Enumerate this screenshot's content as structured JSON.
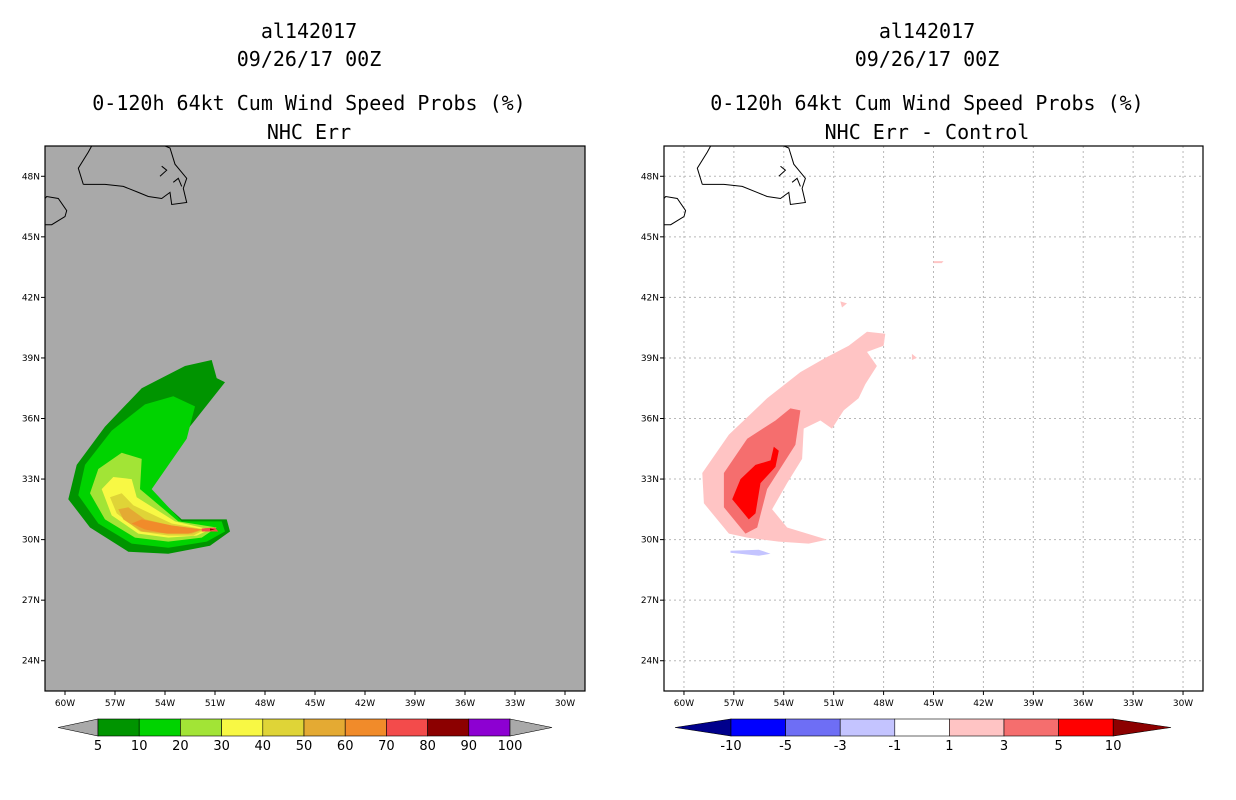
{
  "chart_data": [
    {
      "type": "heatmap",
      "storm_id": "al142017",
      "date": "09/26/17 00Z",
      "title": "0-120h 64kt Cum Wind Speed Probs (%)",
      "subtitle": "NHC Err",
      "background": "#a9a9a9",
      "x_tick_labels": [
        "60W",
        "57W",
        "54W",
        "51W",
        "48W",
        "45W",
        "42W",
        "39W",
        "36W",
        "33W",
        "30W"
      ],
      "y_tick_labels": [
        "24N",
        "27N",
        "30N",
        "33N",
        "36N",
        "39N",
        "42N",
        "45N",
        "48N"
      ],
      "colorbar": {
        "labels": [
          "5",
          "10",
          "20",
          "30",
          "40",
          "50",
          "60",
          "70",
          "80",
          "90",
          "100"
        ],
        "colors": [
          "#009400",
          "#00d300",
          "#a2e436",
          "#f8f844",
          "#dfd437",
          "#e4aa33",
          "#f18b2a",
          "#f34b4b",
          "#8c0000",
          "#8d00d2"
        ],
        "under_color": "#a9a9a9",
        "over_color": "#a9a9a9"
      },
      "contours": [
        {
          "level": "5-10",
          "color": "#009400",
          "points": [
            [
              -56.2,
              29.4
            ],
            [
              -58.5,
              30.6
            ],
            [
              -59.8,
              32.0
            ],
            [
              -59.3,
              33.7
            ],
            [
              -57.6,
              35.6
            ],
            [
              -55.4,
              37.5
            ],
            [
              -52.8,
              38.6
            ],
            [
              -51.2,
              38.9
            ],
            [
              -50.9,
              38.0
            ],
            [
              -50.4,
              37.8
            ],
            [
              -52.6,
              35.5
            ],
            [
              -55.0,
              32.5
            ],
            [
              -53.0,
              31.0
            ],
            [
              -50.3,
              31.0
            ],
            [
              -50.1,
              30.4
            ],
            [
              -51.3,
              29.7
            ],
            [
              -53.8,
              29.3
            ]
          ]
        },
        {
          "level": "10-20",
          "color": "#00d300",
          "points": [
            [
              -56.0,
              29.8
            ],
            [
              -58.0,
              30.8
            ],
            [
              -59.2,
              32.2
            ],
            [
              -58.8,
              33.7
            ],
            [
              -57.2,
              35.4
            ],
            [
              -55.2,
              36.7
            ],
            [
              -53.5,
              37.1
            ],
            [
              -52.2,
              36.6
            ],
            [
              -52.7,
              35.0
            ],
            [
              -54.8,
              32.5
            ],
            [
              -53.0,
              30.9
            ],
            [
              -50.6,
              30.9
            ],
            [
              -50.4,
              30.4
            ],
            [
              -51.5,
              29.9
            ],
            [
              -53.8,
              29.6
            ]
          ]
        },
        {
          "level": "20-30",
          "color": "#a2e436",
          "points": [
            [
              -55.8,
              30.1
            ],
            [
              -57.6,
              31.0
            ],
            [
              -58.5,
              32.3
            ],
            [
              -58.0,
              33.5
            ],
            [
              -56.6,
              34.3
            ],
            [
              -55.4,
              34.0
            ],
            [
              -55.5,
              32.5
            ],
            [
              -53.2,
              30.9
            ],
            [
              -50.9,
              30.6
            ],
            [
              -51.8,
              30.1
            ],
            [
              -53.8,
              29.9
            ]
          ]
        },
        {
          "level": "30-40",
          "color": "#f8f844",
          "points": [
            [
              -55.6,
              30.3
            ],
            [
              -57.2,
              31.2
            ],
            [
              -57.8,
              32.5
            ],
            [
              -57.1,
              33.1
            ],
            [
              -56.0,
              33.0
            ],
            [
              -55.7,
              32.1
            ],
            [
              -53.4,
              30.9
            ],
            [
              -51.3,
              30.5
            ],
            [
              -52.1,
              30.2
            ],
            [
              -53.8,
              30.1
            ]
          ]
        },
        {
          "level": "40-50",
          "color": "#dfd437",
          "points": [
            [
              -55.5,
              30.4
            ],
            [
              -56.9,
              31.3
            ],
            [
              -57.3,
              32.1
            ],
            [
              -56.6,
              32.3
            ],
            [
              -55.9,
              31.7
            ],
            [
              -53.6,
              30.8
            ],
            [
              -51.6,
              30.5
            ],
            [
              -52.3,
              30.2
            ],
            [
              -53.8,
              30.2
            ]
          ]
        },
        {
          "level": "50-60",
          "color": "#e4aa33",
          "points": [
            [
              -55.4,
              30.4
            ],
            [
              -56.5,
              31.0
            ],
            [
              -56.8,
              31.5
            ],
            [
              -56.2,
              31.6
            ],
            [
              -55.2,
              31.0
            ],
            [
              -53.6,
              30.7
            ],
            [
              -51.7,
              30.5
            ],
            [
              -52.4,
              30.3
            ],
            [
              -53.8,
              30.3
            ]
          ]
        },
        {
          "level": "60-70",
          "color": "#f18b2a",
          "points": [
            [
              -55.2,
              30.5
            ],
            [
              -56.0,
              30.8
            ],
            [
              -55.4,
              31.0
            ],
            [
              -53.6,
              30.7
            ],
            [
              -51.8,
              30.5
            ],
            [
              -52.6,
              30.3
            ],
            [
              -53.9,
              30.3
            ]
          ]
        },
        {
          "level": "70-80",
          "color": "#f34b4b",
          "points": [
            [
              -51.8,
              30.55
            ],
            [
              -51.0,
              30.6
            ],
            [
              -50.8,
              30.4
            ],
            [
              -51.8,
              30.4
            ]
          ]
        },
        {
          "level": "80-90",
          "color": "#8c0000",
          "points": [
            [
              -51.3,
              30.55
            ],
            [
              -51.0,
              30.5
            ],
            [
              -51.3,
              30.45
            ]
          ]
        }
      ]
    },
    {
      "type": "heatmap",
      "storm_id": "al142017",
      "date": "09/26/17 00Z",
      "title": "0-120h 64kt Cum Wind Speed Probs (%)",
      "subtitle": "NHC Err - Control",
      "background": "#ffffff",
      "x_tick_labels": [
        "60W",
        "57W",
        "54W",
        "51W",
        "48W",
        "45W",
        "42W",
        "39W",
        "36W",
        "33W",
        "30W"
      ],
      "y_tick_labels": [
        "24N",
        "27N",
        "30N",
        "33N",
        "36N",
        "39N",
        "42N",
        "45N",
        "48N"
      ],
      "colorbar": {
        "labels": [
          "-10",
          "-5",
          "-3",
          "-1",
          "1",
          "3",
          "5",
          "10"
        ],
        "colors": [
          "#0000ff",
          "#6e6ef5",
          "#c4c4ff",
          "#ffffff",
          "#ffc4c4",
          "#f56e6e",
          "#ff0000"
        ],
        "under_color": "#00008c",
        "over_color": "#8c0000"
      },
      "contours": [
        {
          "level": "1-3",
          "color": "#ffc4c4",
          "points": [
            [
              -57.3,
              30.3
            ],
            [
              -58.8,
              31.8
            ],
            [
              -58.9,
              33.3
            ],
            [
              -57.3,
              35.2
            ],
            [
              -55.0,
              37.0
            ],
            [
              -53.0,
              38.3
            ],
            [
              -51.5,
              39.0
            ],
            [
              -50.1,
              39.6
            ],
            [
              -49.0,
              40.3
            ],
            [
              -47.9,
              40.2
            ],
            [
              -48.0,
              39.6
            ],
            [
              -49.0,
              39.3
            ],
            [
              -48.4,
              38.6
            ],
            [
              -49.1,
              37.7
            ],
            [
              -49.5,
              37.0
            ],
            [
              -50.4,
              36.4
            ],
            [
              -51.1,
              35.5
            ],
            [
              -51.8,
              35.9
            ],
            [
              -52.8,
              35.5
            ],
            [
              -52.9,
              34.0
            ],
            [
              -53.8,
              32.8
            ],
            [
              -54.7,
              31.5
            ],
            [
              -53.8,
              30.6
            ],
            [
              -51.4,
              30.0
            ],
            [
              -52.5,
              29.8
            ],
            [
              -54.3,
              29.9
            ],
            [
              -56.2,
              30.1
            ]
          ]
        },
        {
          "level": "1-3",
          "color": "#ffc4c4",
          "points": [
            [
              -46.3,
              38.9
            ],
            [
              -46.0,
              39.0
            ],
            [
              -46.3,
              39.2
            ]
          ]
        },
        {
          "level": "1-3",
          "color": "#ffc4c4",
          "points": [
            [
              -50.5,
              41.5
            ],
            [
              -50.2,
              41.7
            ],
            [
              -50.6,
              41.8
            ]
          ]
        },
        {
          "level": "1-3",
          "color": "#ffc4c4",
          "points": [
            [
              -45.0,
              43.8
            ],
            [
              -44.4,
              43.8
            ],
            [
              -44.5,
              43.7
            ],
            [
              -45.0,
              43.7
            ]
          ]
        },
        {
          "level": "3-5",
          "color": "#f56e6e",
          "points": [
            [
              -56.3,
              30.3
            ],
            [
              -57.6,
              31.6
            ],
            [
              -57.6,
              33.3
            ],
            [
              -56.2,
              35.0
            ],
            [
              -54.5,
              35.9
            ],
            [
              -53.6,
              36.5
            ],
            [
              -53.0,
              36.4
            ],
            [
              -53.3,
              34.7
            ],
            [
              -55.0,
              32.5
            ],
            [
              -55.6,
              30.6
            ]
          ]
        },
        {
          "level": "5-10",
          "color": "#ff0000",
          "points": [
            [
              -56.1,
              31.0
            ],
            [
              -57.1,
              32.0
            ],
            [
              -56.6,
              33.0
            ],
            [
              -55.7,
              33.7
            ],
            [
              -54.5,
              34.0
            ],
            [
              -54.5,
              33.6
            ],
            [
              -55.4,
              32.8
            ],
            [
              -55.7,
              31.3
            ]
          ]
        },
        {
          "level": "5-10",
          "color": "#ff0000",
          "points": [
            [
              -54.6,
              34.6
            ],
            [
              -54.3,
              34.4
            ],
            [
              -54.5,
              33.6
            ],
            [
              -54.8,
              33.9
            ]
          ]
        },
        {
          "level": "-3--1",
          "color": "#c4c4ff",
          "points": [
            [
              -57.2,
              29.45
            ],
            [
              -55.5,
              29.5
            ],
            [
              -54.8,
              29.3
            ],
            [
              -55.5,
              29.2
            ],
            [
              -57.2,
              29.35
            ]
          ]
        }
      ]
    }
  ]
}
